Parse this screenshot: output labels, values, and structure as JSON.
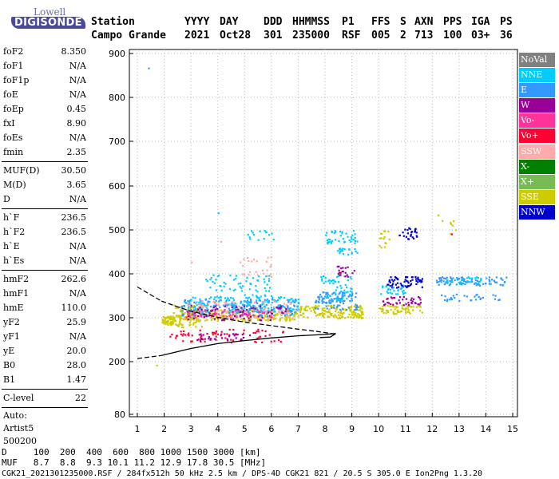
{
  "logo": {
    "company": "Lowell",
    "product": "DIGISONDE"
  },
  "header": {
    "labels": [
      "Station",
      "YYYY",
      "DAY",
      "DDD",
      "HHMMSS",
      "P1",
      "FFS",
      "S",
      "AXN",
      "PPS",
      "IGA",
      "PS"
    ],
    "values": [
      "Campo Grande",
      "2021",
      "Oct28",
      "301",
      "235000",
      "RSF",
      "005",
      "2",
      "713",
      "100",
      "03+",
      "36"
    ]
  },
  "params": {
    "group1": [
      {
        "name": "foF2",
        "value": "8.350"
      },
      {
        "name": "foF1",
        "value": "N/A"
      },
      {
        "name": "foF1p",
        "value": "N/A"
      },
      {
        "name": "foE",
        "value": "N/A"
      },
      {
        "name": "foEp",
        "value": "0.45"
      },
      {
        "name": "fxI",
        "value": "8.90"
      },
      {
        "name": "foEs",
        "value": "N/A"
      },
      {
        "name": "fmin",
        "value": "2.35"
      }
    ],
    "group2": [
      {
        "name": "MUF(D)",
        "value": "30.50"
      },
      {
        "name": "M(D)",
        "value": "3.65"
      },
      {
        "name": "D",
        "value": "N/A"
      }
    ],
    "group3": [
      {
        "name": "h`F",
        "value": "236.5"
      },
      {
        "name": "h`F2",
        "value": "236.5"
      },
      {
        "name": "h`E",
        "value": "N/A"
      },
      {
        "name": "h`Es",
        "value": "N/A"
      }
    ],
    "group4": [
      {
        "name": "hmF2",
        "value": "262.6"
      },
      {
        "name": "hmF1",
        "value": "N/A"
      },
      {
        "name": "hmE",
        "value": "110.0"
      },
      {
        "name": "yF2",
        "value": "25.9"
      },
      {
        "name": "yF1",
        "value": "N/A"
      },
      {
        "name": "yE",
        "value": "20.0"
      },
      {
        "name": "B0",
        "value": "28.0"
      },
      {
        "name": "B1",
        "value": "1.47"
      }
    ],
    "clevel": {
      "name": "C-level",
      "value": "22"
    },
    "auto": [
      "Auto:",
      "Artist5",
      "500200"
    ]
  },
  "legend": [
    {
      "label": "NoVal",
      "color": "#808080"
    },
    {
      "label": "NNE",
      "color": "#00ccff"
    },
    {
      "label": "E",
      "color": "#3399ff"
    },
    {
      "label": "W",
      "color": "#990099"
    },
    {
      "label": "Vo-",
      "color": "#ff3399"
    },
    {
      "label": "Vo+",
      "color": "#ff0033"
    },
    {
      "label": "SSW",
      "color": "#ffaaaa"
    },
    {
      "label": "X-",
      "color": "#008000"
    },
    {
      "label": "X+",
      "color": "#77bb55"
    },
    {
      "label": "SSE",
      "color": "#cccc00"
    },
    {
      "label": "NNW",
      "color": "#0000cc"
    }
  ],
  "footer": {
    "line1": "D     100  200  400  600  800 1000 1500 3000 [km]",
    "line2": "MUF   8.7  8.8  9.3 10.1 11.2 12.9 17.8 30.5 [MHz]",
    "line3": "CGK21_2021301235000.RSF / 284fx512h 50 kHz 2.5 km / DPS-4D CGK21 821 / 20.5 S 305.0 E Ion2Png 1.3.20"
  },
  "chart_data": {
    "type": "scatter",
    "x_ticks": [
      "1",
      "2",
      "3",
      "4",
      "5",
      "6",
      "7",
      "8",
      "9",
      "10",
      "11",
      "12",
      "13",
      "14",
      "15"
    ],
    "y_ticks": [
      "80",
      "200",
      "300",
      "400",
      "500",
      "600",
      "700",
      "800",
      "900"
    ],
    "xlim": [
      0.9,
      15
    ],
    "ylim_note": "non-linear ionogram height axis",
    "clusters": [
      {
        "x": [
          1.9,
          2.4
        ],
        "y": [
          285,
          305
        ],
        "color": "#cccc00",
        "n": 60
      },
      {
        "x": [
          2.3,
          3.4
        ],
        "y": [
          280,
          330
        ],
        "color": "#cccc00",
        "n": 90
      },
      {
        "x": [
          2.5,
          7.0
        ],
        "y": [
          295,
          320
        ],
        "color": "#cccc00",
        "n": 220
      },
      {
        "x": [
          2.6,
          7.0
        ],
        "y": [
          305,
          345
        ],
        "color": "#3399ff",
        "n": 200
      },
      {
        "x": [
          2.8,
          7.0
        ],
        "y": [
          315,
          350
        ],
        "color": "#00ccff",
        "n": 160
      },
      {
        "x": [
          2.7,
          6.8
        ],
        "y": [
          300,
          340
        ],
        "color": "#ffaaaa",
        "n": 120
      },
      {
        "x": [
          2.8,
          6.6
        ],
        "y": [
          295,
          330
        ],
        "color": "#990099",
        "n": 80
      },
      {
        "x": [
          2.8,
          6.0
        ],
        "y": [
          300,
          320
        ],
        "color": "#ff3399",
        "n": 60
      },
      {
        "x": [
          2.2,
          6.5
        ],
        "y": [
          245,
          275
        ],
        "color": "#ff0033",
        "n": 70
      },
      {
        "x": [
          3.2,
          5.2
        ],
        "y": [
          250,
          265
        ],
        "color": "#990099",
        "n": 30
      },
      {
        "x": [
          3.5,
          6.0
        ],
        "y": [
          345,
          400
        ],
        "color": "#00ccff",
        "n": 70
      },
      {
        "x": [
          4.8,
          6.0
        ],
        "y": [
          395,
          440
        ],
        "color": "#ffaaaa",
        "n": 25
      },
      {
        "x": [
          5.0,
          6.4
        ],
        "y": [
          470,
          500
        ],
        "color": "#00ccff",
        "n": 15
      },
      {
        "x": [
          7.0,
          9.4
        ],
        "y": [
          300,
          330
        ],
        "color": "#cccc00",
        "n": 160
      },
      {
        "x": [
          7.6,
          9.2
        ],
        "y": [
          320,
          360
        ],
        "color": "#3399ff",
        "n": 100
      },
      {
        "x": [
          7.8,
          9.0
        ],
        "y": [
          340,
          400
        ],
        "color": "#00ccff",
        "n": 60
      },
      {
        "x": [
          8.0,
          9.2
        ],
        "y": [
          470,
          500
        ],
        "color": "#00ccff",
        "n": 40
      },
      {
        "x": [
          8.4,
          9.2
        ],
        "y": [
          445,
          460
        ],
        "color": "#00ccff",
        "n": 20
      },
      {
        "x": [
          8.4,
          9.1
        ],
        "y": [
          395,
          420
        ],
        "color": "#990099",
        "n": 20
      },
      {
        "x": [
          10.0,
          11.6
        ],
        "y": [
          310,
          330
        ],
        "color": "#cccc00",
        "n": 60
      },
      {
        "x": [
          10.0,
          11.6
        ],
        "y": [
          330,
          350
        ],
        "color": "#990099",
        "n": 40
      },
      {
        "x": [
          10.3,
          11.6
        ],
        "y": [
          370,
          395
        ],
        "color": "#0000cc",
        "n": 60
      },
      {
        "x": [
          10.0,
          11.0
        ],
        "y": [
          355,
          375
        ],
        "color": "#00ccff",
        "n": 30
      },
      {
        "x": [
          10.7,
          11.4
        ],
        "y": [
          480,
          510
        ],
        "color": "#0000cc",
        "n": 25
      },
      {
        "x": [
          10.0,
          10.4
        ],
        "y": [
          450,
          500
        ],
        "color": "#cccc00",
        "n": 15
      },
      {
        "x": [
          12.1,
          14.8
        ],
        "y": [
          375,
          395
        ],
        "color": "#3399ff",
        "n": 90
      },
      {
        "x": [
          12.3,
          14.5
        ],
        "y": [
          340,
          355
        ],
        "color": "#3399ff",
        "n": 30
      },
      {
        "x": [
          12.5,
          13.8
        ],
        "y": [
          380,
          395
        ],
        "color": "#00ccff",
        "n": 30
      },
      {
        "x": [
          12.0,
          13.1
        ],
        "y": [
          490,
          530
        ],
        "color": "#cccc00",
        "n": 8
      }
    ],
    "profile_lower": [
      [
        1.9,
        214
      ],
      [
        3.0,
        230
      ],
      [
        4.0,
        241
      ],
      [
        5.0,
        248
      ],
      [
        6.0,
        254
      ],
      [
        7.0,
        259
      ],
      [
        8.0,
        262
      ],
      [
        8.4,
        264
      ],
      [
        8.2,
        256
      ],
      [
        7.8,
        255
      ]
    ],
    "profile_dashed_lower": [
      [
        1.0,
        207
      ],
      [
        1.9,
        214
      ]
    ],
    "profile_upper": [
      [
        1.9,
        338
      ],
      [
        2.5,
        325
      ],
      [
        3.0,
        315
      ],
      [
        4.0,
        301
      ],
      [
        5.0,
        290
      ],
      [
        6.0,
        282
      ],
      [
        7.0,
        274
      ],
      [
        7.8,
        268
      ],
      [
        8.35,
        263
      ]
    ],
    "profile_dashed_upper": [
      [
        1.0,
        370
      ],
      [
        1.9,
        338
      ]
    ],
    "stray_points": [
      {
        "x": 1.4,
        "y": 868,
        "color": "#3399ff"
      },
      {
        "x": 1.7,
        "y": 193,
        "color": "#cccc00"
      },
      {
        "x": 4.0,
        "y": 540,
        "color": "#00ccff"
      },
      {
        "x": 4.1,
        "y": 475,
        "color": "#ffaaaa"
      },
      {
        "x": 3.0,
        "y": 428,
        "color": "#ffaaaa"
      },
      {
        "x": 12.7,
        "y": 492,
        "color": "#ff0033"
      },
      {
        "x": 12.2,
        "y": 535,
        "color": "#cccc00"
      }
    ]
  }
}
